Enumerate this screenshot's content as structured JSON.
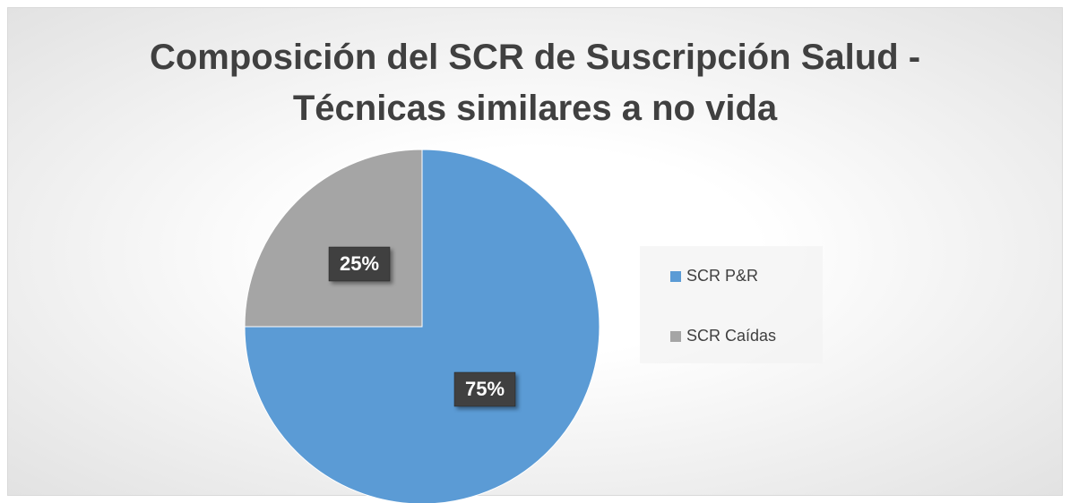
{
  "chart_data": {
    "type": "pie",
    "title": "Composición del SCR de Suscripción Salud - Técnicas similares a no vida",
    "categories": [
      "SCR P&R",
      "SCR Caídas"
    ],
    "values": [
      75,
      25
    ],
    "value_labels": [
      "75%",
      "25%"
    ],
    "colors": [
      "#5b9bd5",
      "#a5a5a5"
    ],
    "legend": "right"
  }
}
